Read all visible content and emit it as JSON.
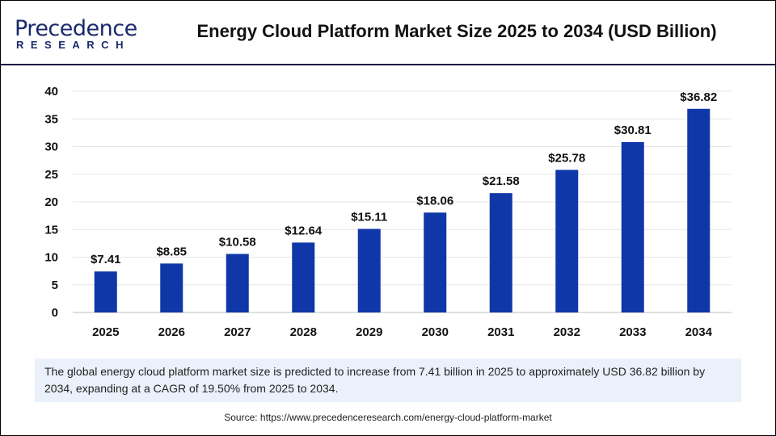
{
  "logo": {
    "line1": "Precedence",
    "line2": "RESEARCH"
  },
  "header": {
    "title": "Energy Cloud Platform Market Size 2025 to 2034 (USD Billion)"
  },
  "chart_data": {
    "type": "bar",
    "title": "Energy Cloud Platform Market Size 2025 to 2034 (USD Billion)",
    "categories": [
      "2025",
      "2026",
      "2027",
      "2028",
      "2029",
      "2030",
      "2031",
      "2032",
      "2033",
      "2034"
    ],
    "values": [
      7.41,
      8.85,
      10.58,
      12.64,
      15.11,
      18.06,
      21.58,
      25.78,
      30.81,
      36.82
    ],
    "data_labels": [
      "$7.41",
      "$8.85",
      "$10.58",
      "$12.64",
      "$15.11",
      "$18.06",
      "$21.58",
      "$25.78",
      "$30.81",
      "$36.82"
    ],
    "yticks": [
      "0",
      "5",
      "10",
      "15",
      "20",
      "25",
      "30",
      "35",
      "40"
    ],
    "ylim": [
      0,
      40
    ],
    "grid": true,
    "bar_color": "#0f37a8"
  },
  "note": "The global energy cloud platform market size is predicted to increase from 7.41 billion in 2025 to approximately USD 36.82 billion by 2034, expanding at a CAGR of 19.50% from 2025 to 2034.",
  "source": "Source: https://www.precedenceresearch.com/energy-cloud-platform-market"
}
